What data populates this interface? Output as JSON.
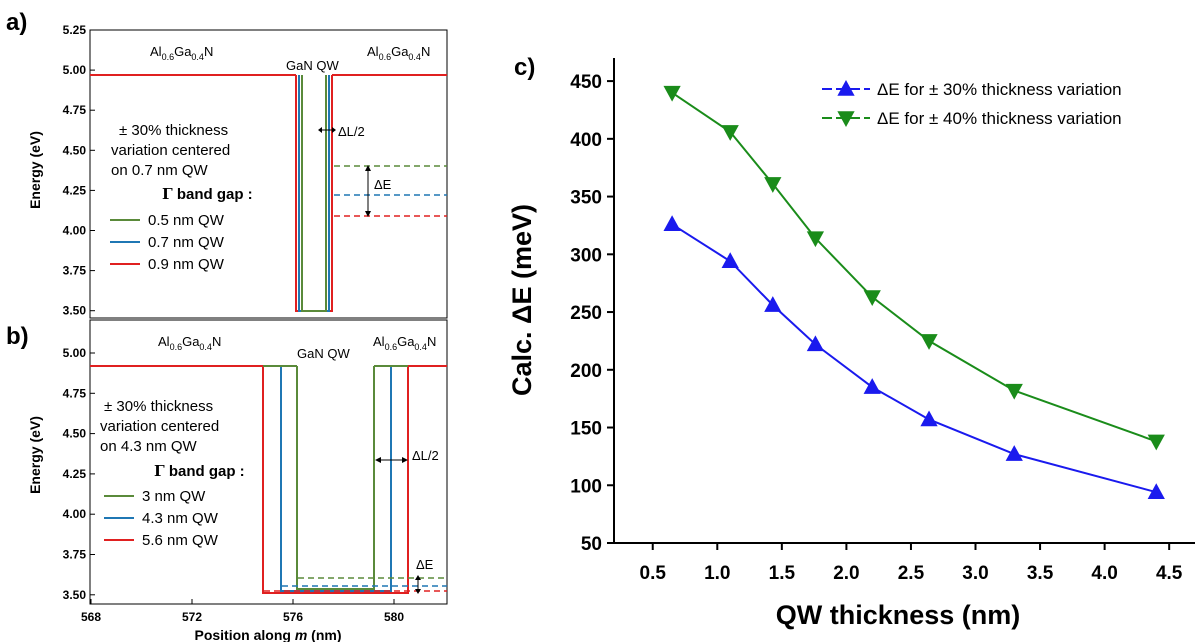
{
  "panels": {
    "a_label": "a)",
    "b_label": "b)",
    "c_label": "c)"
  },
  "panel_a": {
    "barrier_left_main": "Al",
    "barrier_left_sub1": "0.6",
    "barrier_left_ga": "Ga",
    "barrier_left_sub2": "0.4",
    "barrier_left_n": "N",
    "barrier_right_main": "Al",
    "barrier_right_sub1": "0.6",
    "barrier_right_ga": "Ga",
    "barrier_right_sub2": "0.4",
    "barrier_right_n": "N",
    "qw_label": "GaN QW",
    "dl_label": "ΔL/2",
    "de_label": "ΔE",
    "note_line1": "± 30% thickness",
    "note_line2": "variation centered",
    "note_line3": "on 0.7 nm QW",
    "gamma_symbol": "Γ",
    "band_gap_label": " band gap :",
    "legend": [
      {
        "label": "0.5 nm QW",
        "color": "#5a8a3a"
      },
      {
        "label": "0.7 nm QW",
        "color": "#1f77b4"
      },
      {
        "label": "0.9 nm QW",
        "color": "#e02020"
      }
    ],
    "ylabel": "Energy (eV)",
    "yticks": [
      "5.25",
      "5.00",
      "4.75",
      "4.50",
      "4.25",
      "4.00",
      "3.75",
      "3.50"
    ]
  },
  "panel_b": {
    "barrier_left_main": "Al",
    "barrier_left_sub1": "0.6",
    "barrier_left_ga": "Ga",
    "barrier_left_sub2": "0.4",
    "barrier_left_n": "N",
    "barrier_right_main": "Al",
    "barrier_right_sub1": "0.6",
    "barrier_right_ga": "Ga",
    "barrier_right_sub2": "0.4",
    "barrier_right_n": "N",
    "qw_label": "GaN QW",
    "dl_label": "ΔL/2",
    "de_label": "ΔE",
    "note_line1": "± 30% thickness",
    "note_line2": "variation centered",
    "note_line3": "on 4.3 nm QW",
    "gamma_symbol": "Γ",
    "band_gap_label": " band gap :",
    "legend": [
      {
        "label": "3 nm QW",
        "color": "#5a8a3a"
      },
      {
        "label": "4.3 nm QW",
        "color": "#1f77b4"
      },
      {
        "label": "5.6 nm QW",
        "color": "#e02020"
      }
    ],
    "ylabel": "Energy (eV)",
    "yticks": [
      "5.00",
      "4.75",
      "4.50",
      "4.25",
      "4.00",
      "3.75",
      "3.50"
    ],
    "xticks": [
      "568",
      "572",
      "576",
      "580"
    ],
    "xlabel_pre": "Position along ",
    "xlabel_m": "m",
    "xlabel_post": " (nm)"
  },
  "chart_data": [
    {
      "type": "line",
      "panel": "c",
      "xlabel": "QW thickness (nm)",
      "ylabel": "Calc. ΔE (meV)",
      "xlim": [
        0.2,
        4.7
      ],
      "ylim": [
        50,
        470
      ],
      "xticks": [
        "0.5",
        "1.0",
        "1.5",
        "2.0",
        "2.5",
        "3.0",
        "3.5",
        "4.0",
        "4.5"
      ],
      "yticks": [
        "50",
        "100",
        "150",
        "200",
        "250",
        "300",
        "350",
        "400",
        "450"
      ],
      "legend_position": "top-right",
      "series": [
        {
          "name": "ΔE for ± 30% thickness variation",
          "color": "#1a1aee",
          "marker": "triangle-up",
          "x": [
            0.65,
            1.1,
            1.43,
            1.76,
            2.2,
            2.64,
            3.3,
            4.4
          ],
          "y": [
            326,
            294,
            256,
            222,
            185,
            157,
            127,
            94
          ]
        },
        {
          "name": "ΔE for ± 40% thickness variation",
          "color": "#1a8c1a",
          "marker": "triangle-down",
          "x": [
            0.65,
            1.1,
            1.43,
            1.76,
            2.2,
            2.64,
            3.3,
            4.4
          ],
          "y": [
            440,
            406,
            361,
            314,
            263,
            225,
            182,
            138
          ]
        }
      ]
    }
  ]
}
